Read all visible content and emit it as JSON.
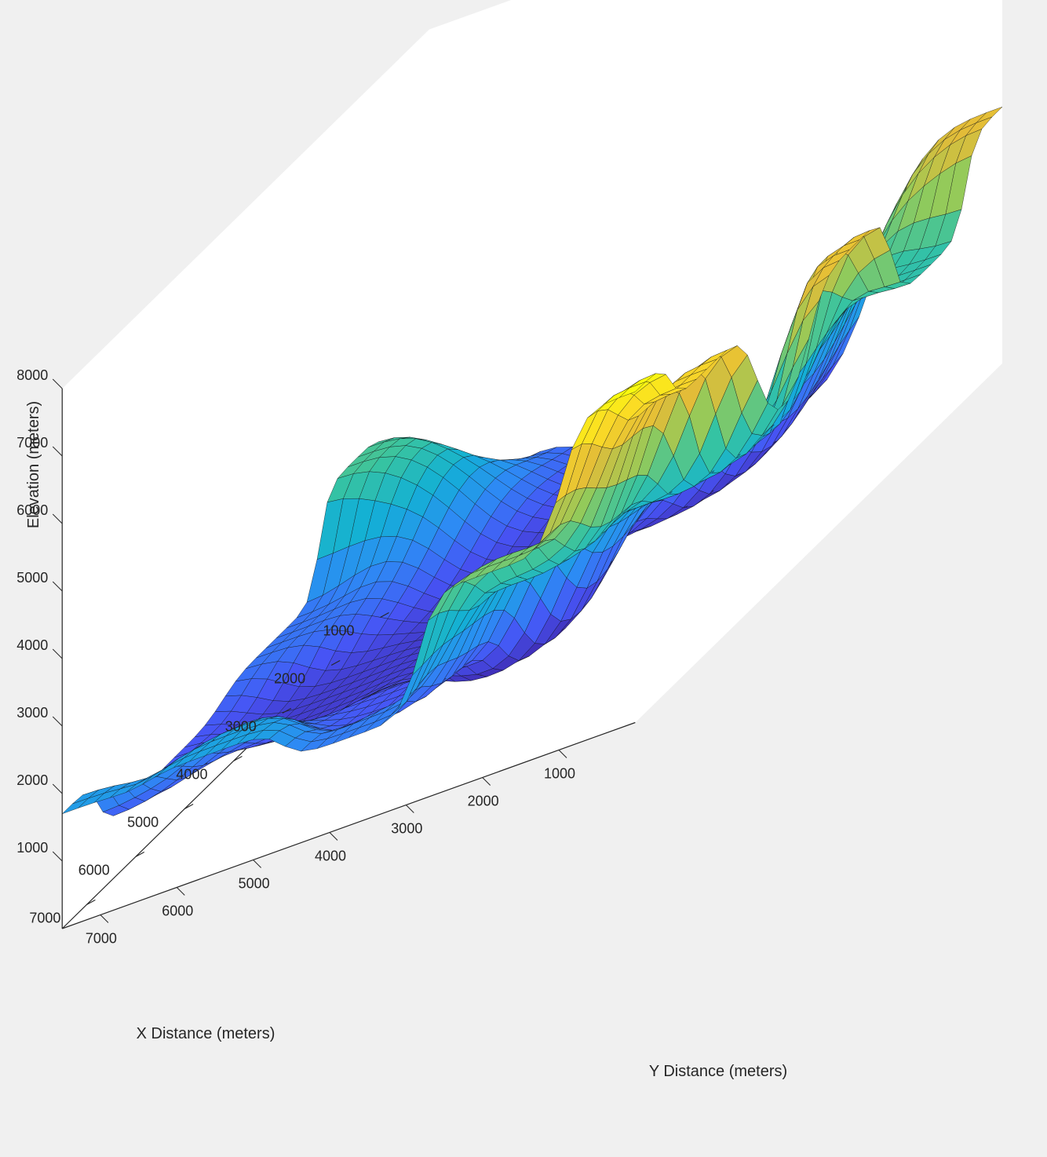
{
  "chart_data": {
    "type": "surface",
    "title": "",
    "xlabel": "X Distance (meters)",
    "ylabel": "Y Distance (meters)",
    "zlabel": "Elevation (meters)",
    "xlim": [
      0,
      7500
    ],
    "ylim": [
      0,
      7500
    ],
    "zlim": [
      0,
      8000
    ],
    "xticks": [
      1000,
      2000,
      3000,
      4000,
      5000,
      6000,
      7000
    ],
    "yticks": [
      1000,
      2000,
      3000,
      4000,
      5000,
      6000,
      7000
    ],
    "zticks": [
      1000,
      2000,
      3000,
      4000,
      5000,
      6000,
      7000,
      8000
    ],
    "colormap": [
      "#3e26a8",
      "#4754f5",
      "#2c8cf4",
      "#13b0d5",
      "#36c3a2",
      "#93ca5a",
      "#e3bc38",
      "#fbdb25",
      "#f9fb0e"
    ],
    "grid": false,
    "legend": "none",
    "elevation_range_visible": [
      300,
      4900
    ],
    "peak_elevation": 4900,
    "surface_points": [
      {
        "x": 7500,
        "y": 7500,
        "z": 1700
      },
      {
        "x": 7500,
        "y": 5500,
        "z": 1800
      },
      {
        "x": 7500,
        "y": 3700,
        "z": 1300
      },
      {
        "x": 7500,
        "y": 2000,
        "z": 3000
      },
      {
        "x": 7500,
        "y": 0,
        "z": 4900
      },
      {
        "x": 6000,
        "y": 7500,
        "z": 900
      },
      {
        "x": 6000,
        "y": 4000,
        "z": 900
      },
      {
        "x": 6000,
        "y": 2000,
        "z": 2200
      },
      {
        "x": 6000,
        "y": 0,
        "z": 4200
      },
      {
        "x": 4500,
        "y": 6000,
        "z": 600
      },
      {
        "x": 4500,
        "y": 3500,
        "z": 300
      },
      {
        "x": 4500,
        "y": 1000,
        "z": 2000
      },
      {
        "x": 3000,
        "y": 7500,
        "z": 1200
      },
      {
        "x": 3000,
        "y": 4500,
        "z": 500
      },
      {
        "x": 3000,
        "y": 1500,
        "z": 1500
      },
      {
        "x": 3000,
        "y": 0,
        "z": 3900
      },
      {
        "x": 1500,
        "y": 7500,
        "z": 2700
      },
      {
        "x": 1500,
        "y": 3000,
        "z": 400
      },
      {
        "x": 1500,
        "y": 0,
        "z": 2500
      },
      {
        "x": 0,
        "y": 7500,
        "z": 900
      },
      {
        "x": 0,
        "y": 3500,
        "z": 400
      },
      {
        "x": 0,
        "y": 0,
        "z": 3800
      }
    ]
  }
}
